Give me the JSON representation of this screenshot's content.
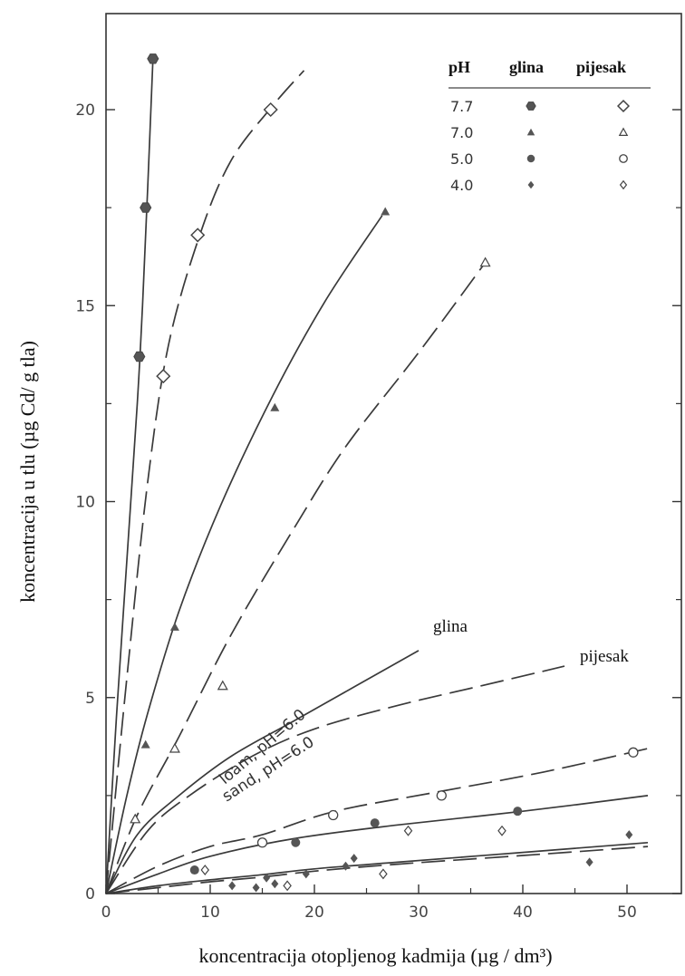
{
  "chart_data": {
    "type": "scatter",
    "xlabel": "koncentracija otopljenog kadmija (µg / dm³)",
    "ylabel": "koncentracija u tlu (µg Cd/ g tla)",
    "xlim": [
      0,
      55
    ],
    "ylim": [
      0,
      22.5
    ],
    "x_ticks": [
      "0",
      "10",
      "20",
      "30",
      "40",
      "50"
    ],
    "y_ticks": [
      "0",
      "5",
      "10",
      "15",
      "20"
    ],
    "grid": false,
    "legend": {
      "position": "top-right",
      "headers": [
        "pH",
        "glina",
        "pijesak"
      ],
      "rows": [
        {
          "ph": "7.7",
          "glina_marker": "filled-hexagon",
          "pijesak_marker": "open-diamond"
        },
        {
          "ph": "7.0",
          "glina_marker": "filled-triangle",
          "pijesak_marker": "open-triangle"
        },
        {
          "ph": "5.0",
          "glina_marker": "filled-circle",
          "pijesak_marker": "open-circle"
        },
        {
          "ph": "4.0",
          "glina_marker": "filled-small-diamond",
          "pijesak_marker": "open-small-diamond"
        }
      ]
    },
    "series": [
      {
        "name": "glina pH 7.7",
        "marker": "filled-hexagon",
        "fill": true,
        "dash": "solid",
        "points": [
          [
            4.5,
            21.3
          ],
          [
            3.8,
            17.5
          ],
          [
            3.2,
            13.7
          ]
        ],
        "curve": [
          [
            0,
            0
          ],
          [
            1,
            4.5
          ],
          [
            2,
            8.5
          ],
          [
            3,
            12.5
          ],
          [
            3.5,
            15
          ],
          [
            4,
            18
          ],
          [
            4.5,
            21.3
          ]
        ]
      },
      {
        "name": "pijesak pH 7.7",
        "marker": "open-diamond",
        "fill": false,
        "dash": "long",
        "points": [
          [
            15.8,
            20.0
          ],
          [
            8.8,
            16.8
          ],
          [
            5.5,
            13.2
          ]
        ],
        "curve": [
          [
            0,
            0
          ],
          [
            2,
            5.5
          ],
          [
            4,
            10.5
          ],
          [
            6,
            14
          ],
          [
            9,
            16.8
          ],
          [
            12,
            18.7
          ],
          [
            16,
            20.1
          ],
          [
            19,
            21
          ]
        ]
      },
      {
        "name": "glina pH 7.0",
        "marker": "filled-triangle",
        "fill": true,
        "dash": "solid",
        "points": [
          [
            26.8,
            17.4
          ],
          [
            16.2,
            12.4
          ],
          [
            6.6,
            6.8
          ],
          [
            3.8,
            3.8
          ]
        ],
        "curve": [
          [
            0,
            0
          ],
          [
            2,
            2.5
          ],
          [
            4,
            4.6
          ],
          [
            7,
            7.2
          ],
          [
            11,
            9.9
          ],
          [
            16,
            12.7
          ],
          [
            21,
            15.1
          ],
          [
            26.5,
            17.3
          ]
        ]
      },
      {
        "name": "pijesak pH 7.0",
        "marker": "open-triangle",
        "fill": false,
        "dash": "long",
        "points": [
          [
            36.4,
            16.1
          ],
          [
            11.2,
            5.3
          ],
          [
            6.6,
            3.7
          ],
          [
            2.8,
            1.9
          ]
        ],
        "curve": [
          [
            0,
            0
          ],
          [
            3,
            2
          ],
          [
            7,
            4
          ],
          [
            12,
            6.6
          ],
          [
            18,
            9.3
          ],
          [
            23,
            11.4
          ],
          [
            30,
            13.8
          ],
          [
            36.4,
            16.1
          ]
        ]
      },
      {
        "name": "glina pH 6.0",
        "marker": "none",
        "fill": false,
        "dash": "solid",
        "points": [],
        "curve": [
          [
            0,
            0
          ],
          [
            3,
            1.5
          ],
          [
            7,
            2.5
          ],
          [
            12,
            3.5
          ],
          [
            18,
            4.4
          ],
          [
            24,
            5.3
          ],
          [
            30,
            6.2
          ]
        ]
      },
      {
        "name": "pijesak pH 6.0",
        "marker": "none",
        "fill": false,
        "dash": "long",
        "points": [],
        "curve": [
          [
            0,
            0
          ],
          [
            4,
            1.6
          ],
          [
            8,
            2.5
          ],
          [
            14,
            3.5
          ],
          [
            20,
            4.2
          ],
          [
            28,
            4.8
          ],
          [
            36,
            5.3
          ],
          [
            44,
            5.8
          ]
        ]
      },
      {
        "name": "pijesak pH 5.0",
        "marker": "open-circle",
        "fill": false,
        "dash": "long",
        "points": [
          [
            32.2,
            2.5
          ],
          [
            21.8,
            2.0
          ],
          [
            50.6,
            3.6
          ],
          [
            15.0,
            1.3
          ]
        ],
        "curve": [
          [
            0,
            0
          ],
          [
            5,
            0.7
          ],
          [
            10,
            1.2
          ],
          [
            15,
            1.5
          ],
          [
            22,
            2.1
          ],
          [
            32,
            2.6
          ],
          [
            42,
            3.1
          ],
          [
            52,
            3.7
          ]
        ]
      },
      {
        "name": "glina pH 5.0",
        "marker": "filled-circle",
        "fill": true,
        "dash": "solid",
        "points": [
          [
            8.5,
            0.6
          ],
          [
            18.2,
            1.3
          ],
          [
            25.8,
            1.8
          ],
          [
            39.5,
            2.1
          ]
        ],
        "curve": [
          [
            0,
            0
          ],
          [
            5,
            0.5
          ],
          [
            10,
            0.95
          ],
          [
            18,
            1.4
          ],
          [
            28,
            1.75
          ],
          [
            40,
            2.1
          ],
          [
            52,
            2.5
          ]
        ]
      },
      {
        "name": "glina pH 4.0",
        "marker": "filled-small-diamond",
        "fill": true,
        "dash": "solid",
        "points": [
          [
            50.2,
            1.5
          ],
          [
            46.4,
            0.8
          ],
          [
            23.8,
            0.9
          ],
          [
            19.2,
            0.5
          ],
          [
            15.4,
            0.4
          ],
          [
            12.1,
            0.2
          ],
          [
            16.2,
            0.25
          ],
          [
            14.4,
            0.15
          ],
          [
            23.0,
            0.7
          ]
        ],
        "curve": [
          [
            0,
            0
          ],
          [
            5,
            0.2
          ],
          [
            10,
            0.35
          ],
          [
            15,
            0.48
          ],
          [
            20,
            0.63
          ],
          [
            28,
            0.8
          ],
          [
            40,
            1.05
          ],
          [
            52,
            1.3
          ]
        ]
      },
      {
        "name": "pijesak pH 4.0",
        "marker": "open-small-diamond",
        "fill": false,
        "dash": "long",
        "points": [
          [
            29.0,
            1.6
          ],
          [
            26.6,
            0.5
          ],
          [
            17.4,
            0.2
          ],
          [
            9.5,
            0.6
          ],
          [
            38.0,
            1.6
          ]
        ],
        "curve": [
          [
            0,
            0
          ],
          [
            5,
            0.15
          ],
          [
            10,
            0.3
          ],
          [
            15,
            0.42
          ],
          [
            20,
            0.57
          ],
          [
            28,
            0.75
          ],
          [
            40,
            0.97
          ],
          [
            52,
            1.2
          ]
        ]
      }
    ],
    "annotations": {
      "glina": "glina",
      "pijesak": "pijesak",
      "loam": "loam, pH=6.0",
      "sand": "sand, pH=6.0"
    }
  }
}
